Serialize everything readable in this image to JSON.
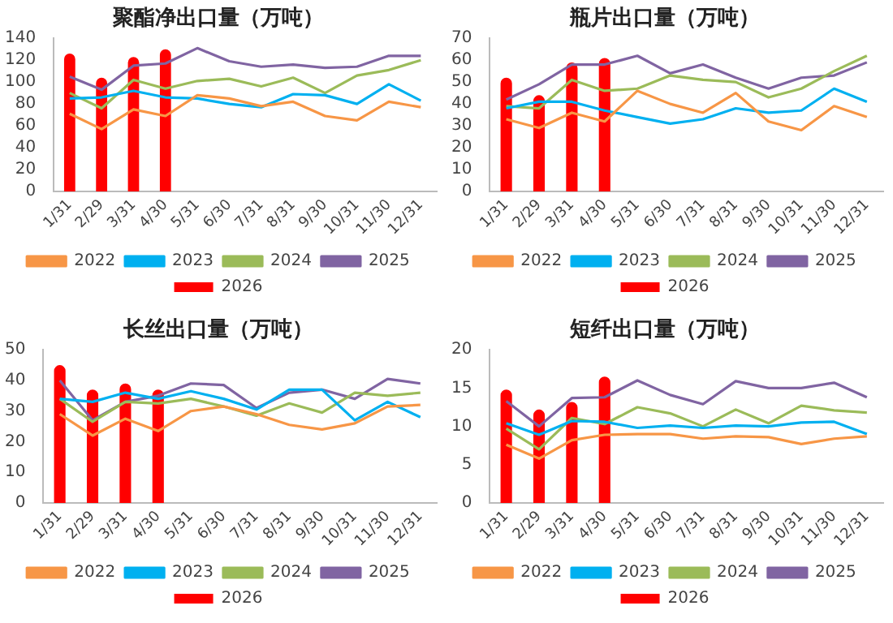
{
  "chart_data": [
    {
      "type": "line",
      "title": "聚酯净出口量（万吨）",
      "categories": [
        "1/31",
        "2/29",
        "3/31",
        "4/30",
        "5/31",
        "6/30",
        "7/31",
        "8/31",
        "9/30",
        "10/31",
        "11/30",
        "12/31"
      ],
      "ylim": [
        0,
        140
      ],
      "yticks": [
        0,
        20,
        40,
        60,
        80,
        100,
        120,
        140
      ],
      "grid": false,
      "legend": "bottom",
      "marker": "none",
      "series": [
        {
          "name": "2026",
          "type": "bar",
          "color": "#ff0000",
          "values": [
            126,
            104,
            123,
            130,
            null,
            null,
            null,
            null,
            null,
            null,
            null,
            null
          ]
        },
        {
          "name": "2022",
          "color": "#f79646",
          "values": [
            71,
            57,
            75,
            69,
            88,
            85,
            78,
            82,
            69,
            65,
            82,
            77
          ]
        },
        {
          "name": "2023",
          "color": "#00b0f0",
          "values": [
            85,
            86,
            92,
            86,
            85,
            80,
            77,
            89,
            88,
            80,
            98,
            83
          ]
        },
        {
          "name": "2024",
          "color": "#9bbb59",
          "values": [
            90,
            76,
            102,
            94,
            101,
            103,
            96,
            104,
            90,
            106,
            111,
            120
          ]
        },
        {
          "name": "2025",
          "color": "#8064a2",
          "values": [
            105,
            93,
            115,
            117,
            131,
            119,
            114,
            116,
            113,
            114,
            124,
            124
          ]
        }
      ]
    },
    {
      "type": "line",
      "title": "瓶片出口量（万吨）",
      "categories": [
        "1/31",
        "2/29",
        "3/31",
        "4/30",
        "5/31",
        "6/30",
        "7/31",
        "8/31",
        "9/30",
        "10/31",
        "11/30",
        "12/31"
      ],
      "ylim": [
        0,
        70
      ],
      "yticks": [
        0,
        10,
        20,
        30,
        40,
        50,
        60,
        70
      ],
      "grid": false,
      "legend": "bottom",
      "marker": "none",
      "series": [
        {
          "name": "2026",
          "type": "bar",
          "color": "#ff0000",
          "values": [
            52,
            44,
            59,
            61,
            null,
            null,
            null,
            null,
            null,
            null,
            null,
            null
          ]
        },
        {
          "name": "2022",
          "color": "#f79646",
          "values": [
            33,
            29,
            36,
            32,
            46,
            40,
            36,
            45,
            32,
            28,
            39,
            34
          ]
        },
        {
          "name": "2023",
          "color": "#00b0f0",
          "values": [
            38,
            41,
            41,
            37,
            34,
            31,
            33,
            38,
            36,
            37,
            47,
            41
          ]
        },
        {
          "name": "2024",
          "color": "#9bbb59",
          "values": [
            39,
            38,
            51,
            46,
            47,
            53,
            51,
            50,
            43,
            47,
            55,
            62
          ]
        },
        {
          "name": "2025",
          "color": "#8064a2",
          "values": [
            42,
            49,
            58,
            58,
            62,
            54,
            58,
            52,
            47,
            52,
            53,
            59
          ]
        }
      ]
    },
    {
      "type": "line",
      "title": "长丝出口量（万吨）",
      "categories": [
        "1/31",
        "2/29",
        "3/31",
        "4/30",
        "5/31",
        "6/30",
        "7/31",
        "8/31",
        "9/30",
        "10/31",
        "11/30",
        "12/31"
      ],
      "ylim": [
        0,
        50
      ],
      "yticks": [
        0,
        10,
        20,
        30,
        40,
        50
      ],
      "grid": false,
      "legend": "bottom",
      "marker": "none",
      "series": [
        {
          "name": "2026",
          "type": "bar",
          "color": "#ff0000",
          "values": [
            45,
            37,
            39,
            37,
            null,
            null,
            null,
            null,
            null,
            null,
            null,
            null
          ]
        },
        {
          "name": "2022",
          "color": "#f79646",
          "values": [
            29,
            22,
            27.5,
            23.5,
            30,
            31.5,
            29,
            25.5,
            24,
            26,
            31.5,
            32
          ]
        },
        {
          "name": "2023",
          "color": "#00b0f0",
          "values": [
            34,
            33,
            36,
            34,
            36.5,
            34,
            30.5,
            37,
            37,
            27,
            33,
            28
          ]
        },
        {
          "name": "2024",
          "color": "#9bbb59",
          "values": [
            34,
            26.5,
            33,
            32.5,
            34,
            31.5,
            28.5,
            32.5,
            29.5,
            36,
            35,
            36
          ]
        },
        {
          "name": "2025",
          "color": "#8064a2",
          "values": [
            40,
            27,
            33,
            35,
            39,
            38.5,
            31,
            36,
            37,
            34,
            40.5,
            39
          ]
        }
      ]
    },
    {
      "type": "line",
      "title": "短纤出口量（万吨）",
      "categories": [
        "1/31",
        "2/29",
        "3/31",
        "4/30",
        "5/31",
        "6/30",
        "7/31",
        "8/31",
        "9/30",
        "10/31",
        "11/30",
        "12/31"
      ],
      "ylim": [
        0,
        20
      ],
      "yticks": [
        0,
        5,
        10,
        15,
        20
      ],
      "grid": false,
      "legend": "bottom",
      "marker": "none",
      "series": [
        {
          "name": "2026",
          "type": "bar",
          "color": "#ff0000",
          "values": [
            14.8,
            12.2,
            13.2,
            16.5,
            null,
            null,
            null,
            null,
            null,
            null,
            null,
            null
          ]
        },
        {
          "name": "2022",
          "color": "#f79646",
          "values": [
            7.6,
            5.8,
            8.2,
            8.9,
            9,
            9,
            8.4,
            8.7,
            8.6,
            7.7,
            8.4,
            8.7
          ]
        },
        {
          "name": "2023",
          "color": "#00b0f0",
          "values": [
            10.4,
            8.9,
            10.7,
            10.6,
            9.8,
            10.1,
            9.8,
            10.1,
            10,
            10.5,
            10.6,
            9
          ]
        },
        {
          "name": "2024",
          "color": "#9bbb59",
          "values": [
            9.7,
            7,
            11.1,
            10.3,
            12.5,
            11.7,
            10,
            12.2,
            10.4,
            12.7,
            12.1,
            11.8
          ]
        },
        {
          "name": "2025",
          "color": "#8064a2",
          "values": [
            13.3,
            10,
            13.7,
            13.8,
            16,
            14.1,
            12.9,
            15.9,
            15,
            15,
            15.7,
            13.8
          ]
        }
      ]
    }
  ]
}
